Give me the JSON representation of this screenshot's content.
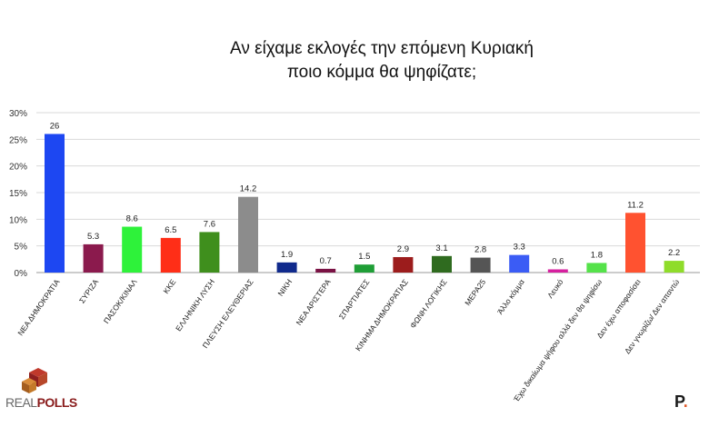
{
  "title": {
    "line1": "Αν είχαμε εκλογές την επόμενη Κυριακή",
    "line2": "ποιο κόμμα θα ψηφίζατε;"
  },
  "chart_data": {
    "type": "bar",
    "title": "Αν είχαμε εκλογές την επόμενη Κυριακή ποιο κόμμα θα ψηφίζατε;",
    "xlabel": "",
    "ylabel": "",
    "ylim": [
      0,
      30
    ],
    "y_ticks": [
      "0%",
      "5%",
      "10%",
      "15%",
      "20%",
      "25%",
      "30%"
    ],
    "y_tick_values": [
      0,
      5,
      10,
      15,
      20,
      25,
      30
    ],
    "grid": true,
    "categories": [
      "ΝΕΑ ΔΗΜΟΚΡΑΤΙΑ",
      "ΣΥΡΙΖΑ",
      "ΠΑΣΟΚ/ΚΙΝΑΛ",
      "ΚΚΕ",
      "ΕΛΛΗΝΙΚΗ ΛΥΣΗ",
      "ΠΛΕΥΣΗ ΕΛΕΥΘΕΡΙΑΣ",
      "ΝΙΚΗ",
      "ΝΕΑ ΑΡΙΣΤΕΡΑ",
      "ΣΠΑΡΤΙΑΤΕΣ",
      "ΚΙΝΗΜΑ ΔΗΜΟΚΡΑΤΙΑΣ",
      "ΦΩΝΗ ΛΟΓΙΚΗΣ",
      "ΜΕΡΑ25",
      "Άλλο κόμμα",
      "Λευκό",
      "Έχω δικαίωμα ψήφου αλλά δεν θα ψηφίσω",
      "Δεν έχω αποφασίσει",
      "Δεν γνωρίζω/ Δεν απαντώ"
    ],
    "values": [
      26,
      5.3,
      8.6,
      6.5,
      7.6,
      14.2,
      1.9,
      0.7,
      1.5,
      2.9,
      3.1,
      2.8,
      3.3,
      0.6,
      1.8,
      11.2,
      2.2
    ],
    "value_labels": [
      "26",
      "5.3",
      "8.6",
      "6.5",
      "7.6",
      "14.2",
      "1.9",
      "0.7",
      "1.5",
      "2.9",
      "3.1",
      "2.8",
      "3.3",
      "0.6",
      "1.8",
      "11.2",
      "2.2"
    ],
    "colors": [
      "#1d47f2",
      "#8b1a4d",
      "#2ef23a",
      "#ff2e17",
      "#3f8f1d",
      "#8c8c8c",
      "#102a8c",
      "#7a1244",
      "#1f9e36",
      "#9c1c1c",
      "#2f6b1f",
      "#555555",
      "#3b5cf5",
      "#d6209f",
      "#55e24a",
      "#ff5230",
      "#8fdc2a"
    ]
  },
  "logo": {
    "part1": "REAL",
    "part2": "POLLS"
  },
  "brand": {
    "letter": "P",
    "dot": "."
  }
}
